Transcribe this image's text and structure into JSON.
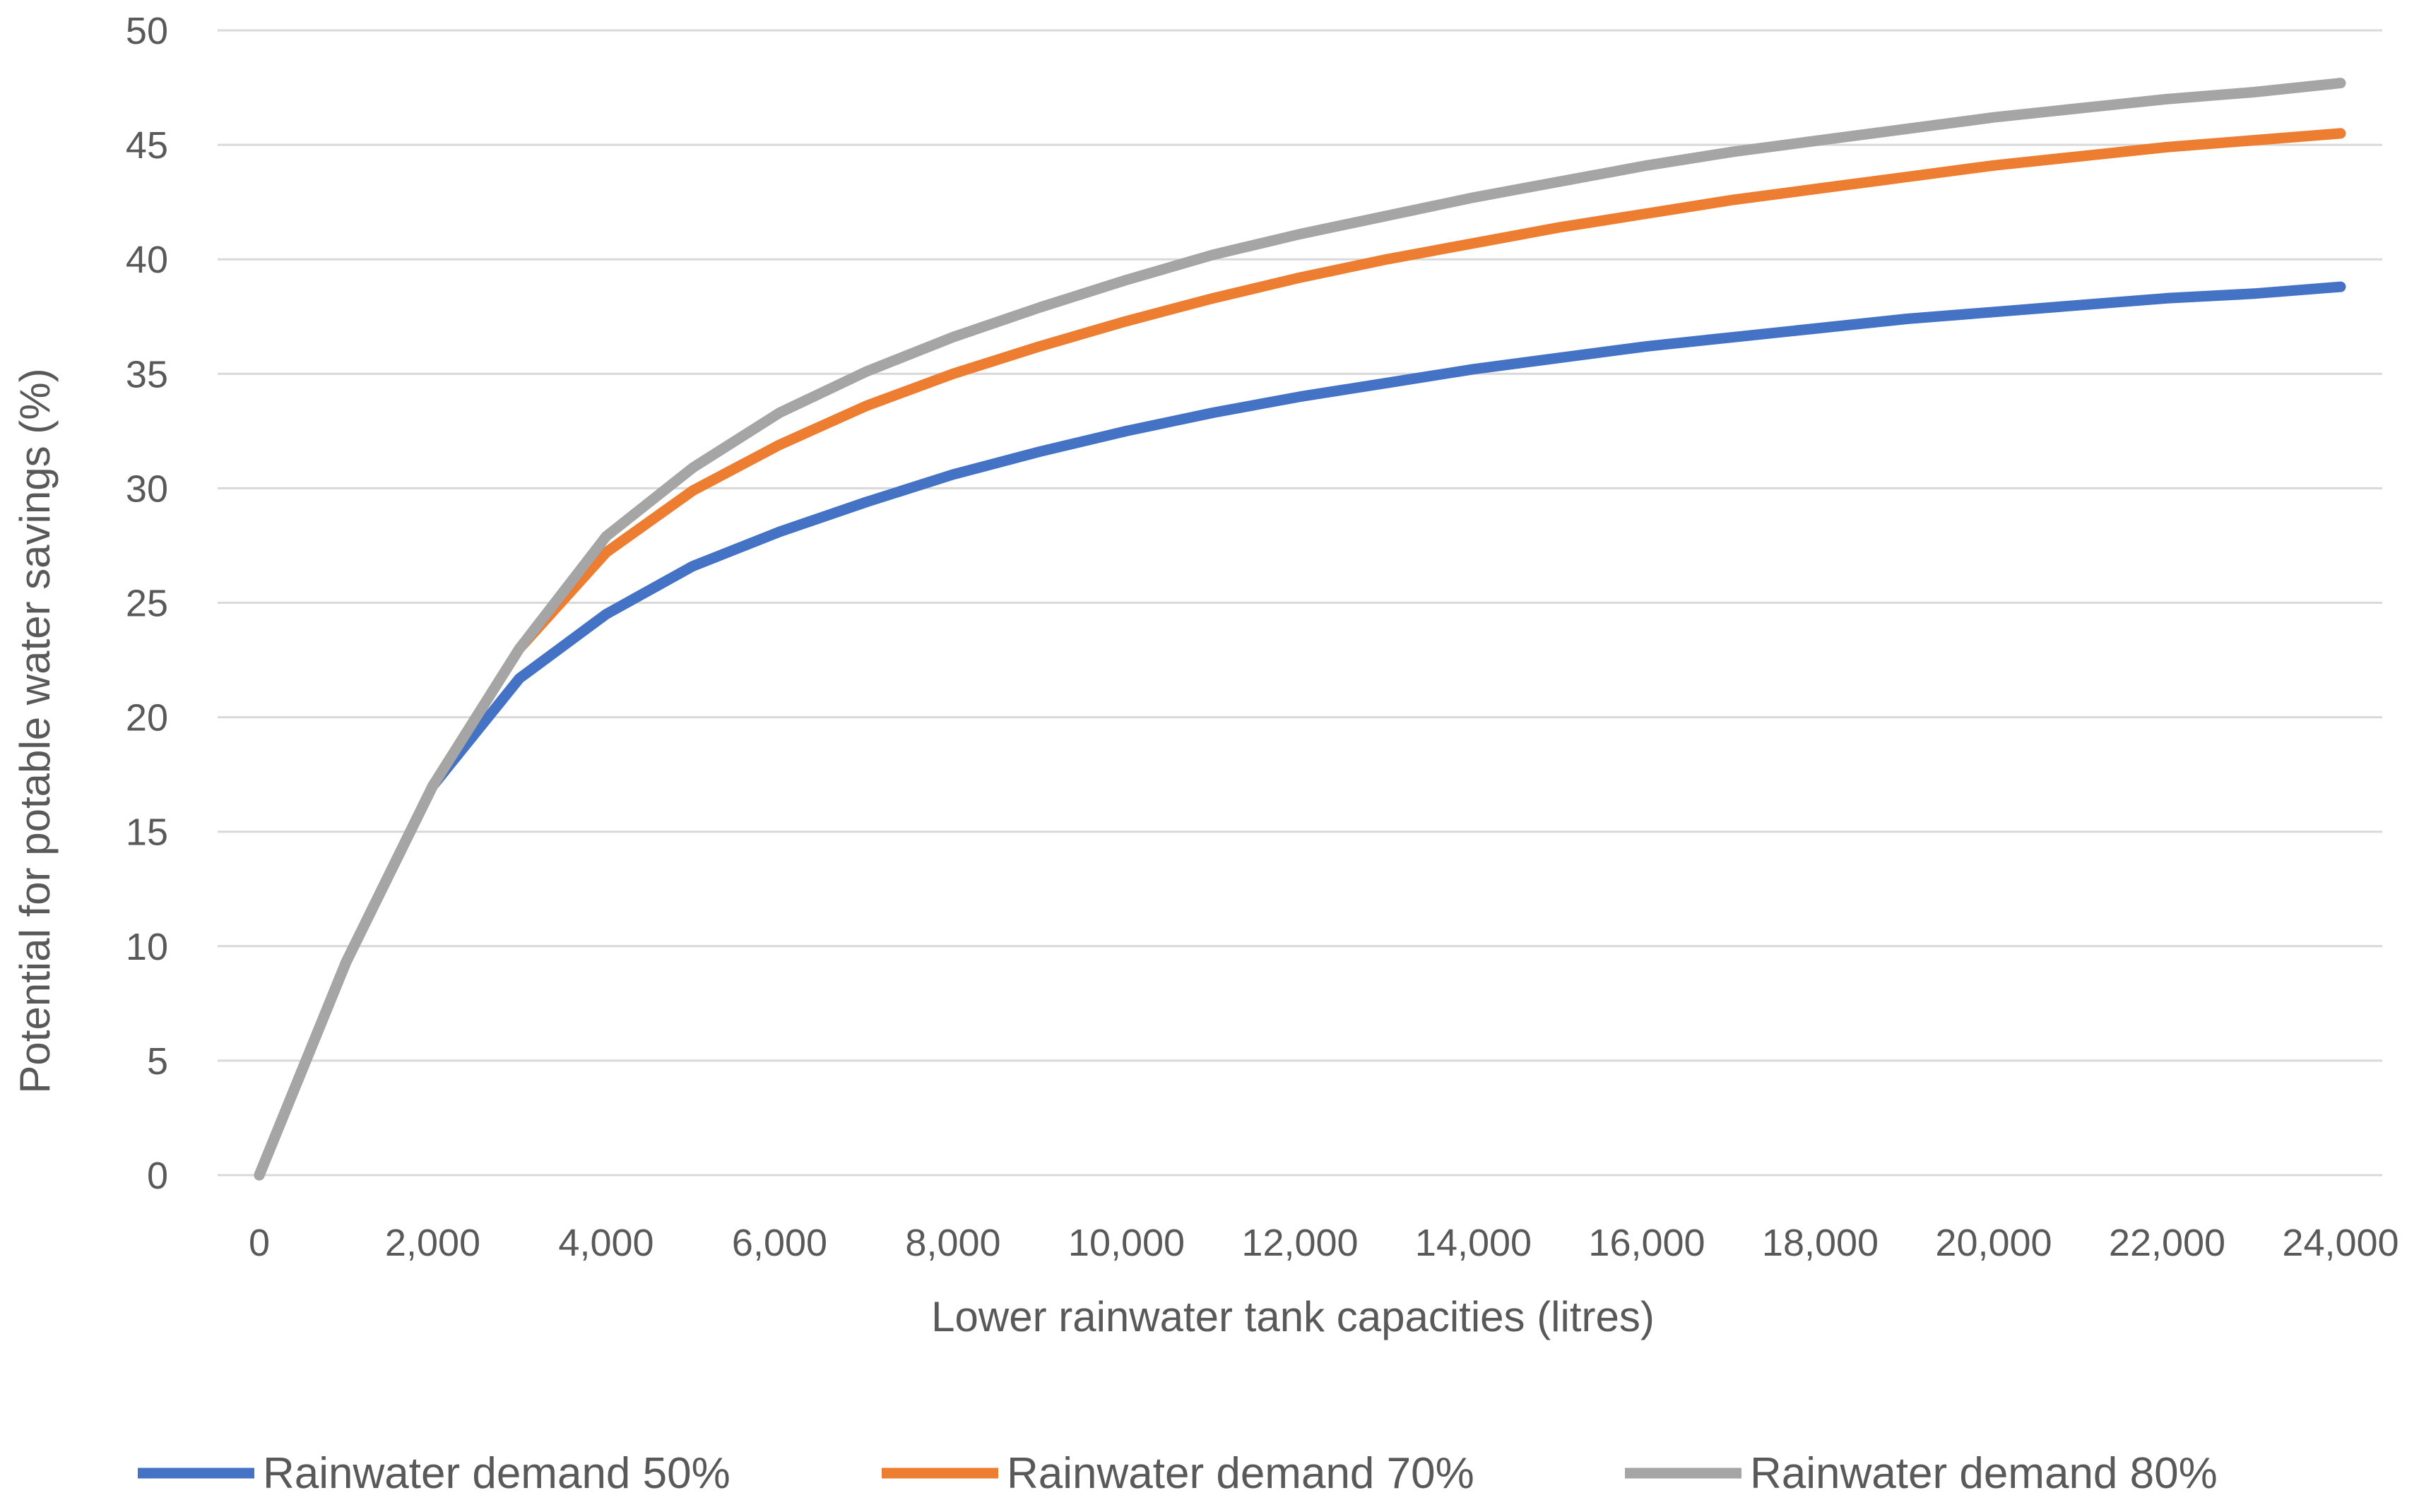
{
  "chart_data": {
    "type": "line",
    "title": "",
    "xlabel": "Lower rainwater tank capacities (litres)",
    "ylabel": "Potential for potable water savings (%)",
    "xlim": [
      0,
      24000
    ],
    "ylim": [
      0,
      50
    ],
    "grid": true,
    "legend_position": "bottom",
    "x_tick_labels": [
      "0",
      "2,000",
      "4,000",
      "6,000",
      "8,000",
      "10,000",
      "12,000",
      "14,000",
      "16,000",
      "18,000",
      "20,000",
      "22,000",
      "24,000"
    ],
    "y_tick_labels": [
      "0",
      "5",
      "10",
      "15",
      "20",
      "25",
      "30",
      "35",
      "40",
      "45",
      "50"
    ],
    "x": [
      0,
      1000,
      2000,
      3000,
      4000,
      5000,
      6000,
      7000,
      8000,
      9000,
      10000,
      11000,
      12000,
      13000,
      14000,
      15000,
      16000,
      17000,
      18000,
      19000,
      20000,
      21000,
      22000,
      23000,
      24000
    ],
    "series": [
      {
        "name": "Rainwater demand 50%",
        "color": "#4472c4",
        "values": [
          0,
          9.3,
          17.0,
          21.7,
          24.5,
          26.6,
          28.1,
          29.4,
          30.6,
          31.6,
          32.5,
          33.3,
          34.0,
          34.6,
          35.2,
          35.7,
          36.2,
          36.6,
          37.0,
          37.4,
          37.7,
          38.0,
          38.3,
          38.5,
          38.8
        ]
      },
      {
        "name": "Rainwater demand 70%",
        "color": "#ed7d31",
        "values": [
          0,
          9.3,
          17.0,
          23.0,
          27.2,
          29.9,
          31.9,
          33.6,
          35.0,
          36.2,
          37.3,
          38.3,
          39.2,
          40.0,
          40.7,
          41.4,
          42.0,
          42.6,
          43.1,
          43.6,
          44.1,
          44.5,
          44.9,
          45.2,
          45.5
        ]
      },
      {
        "name": "Rainwater demand 80%",
        "color": "#a5a5a5",
        "values": [
          0,
          9.3,
          17.0,
          23.0,
          27.9,
          30.9,
          33.3,
          35.1,
          36.6,
          37.9,
          39.1,
          40.2,
          41.1,
          41.9,
          42.7,
          43.4,
          44.1,
          44.7,
          45.2,
          45.7,
          46.2,
          46.6,
          47.0,
          47.3,
          47.7
        ]
      }
    ]
  }
}
